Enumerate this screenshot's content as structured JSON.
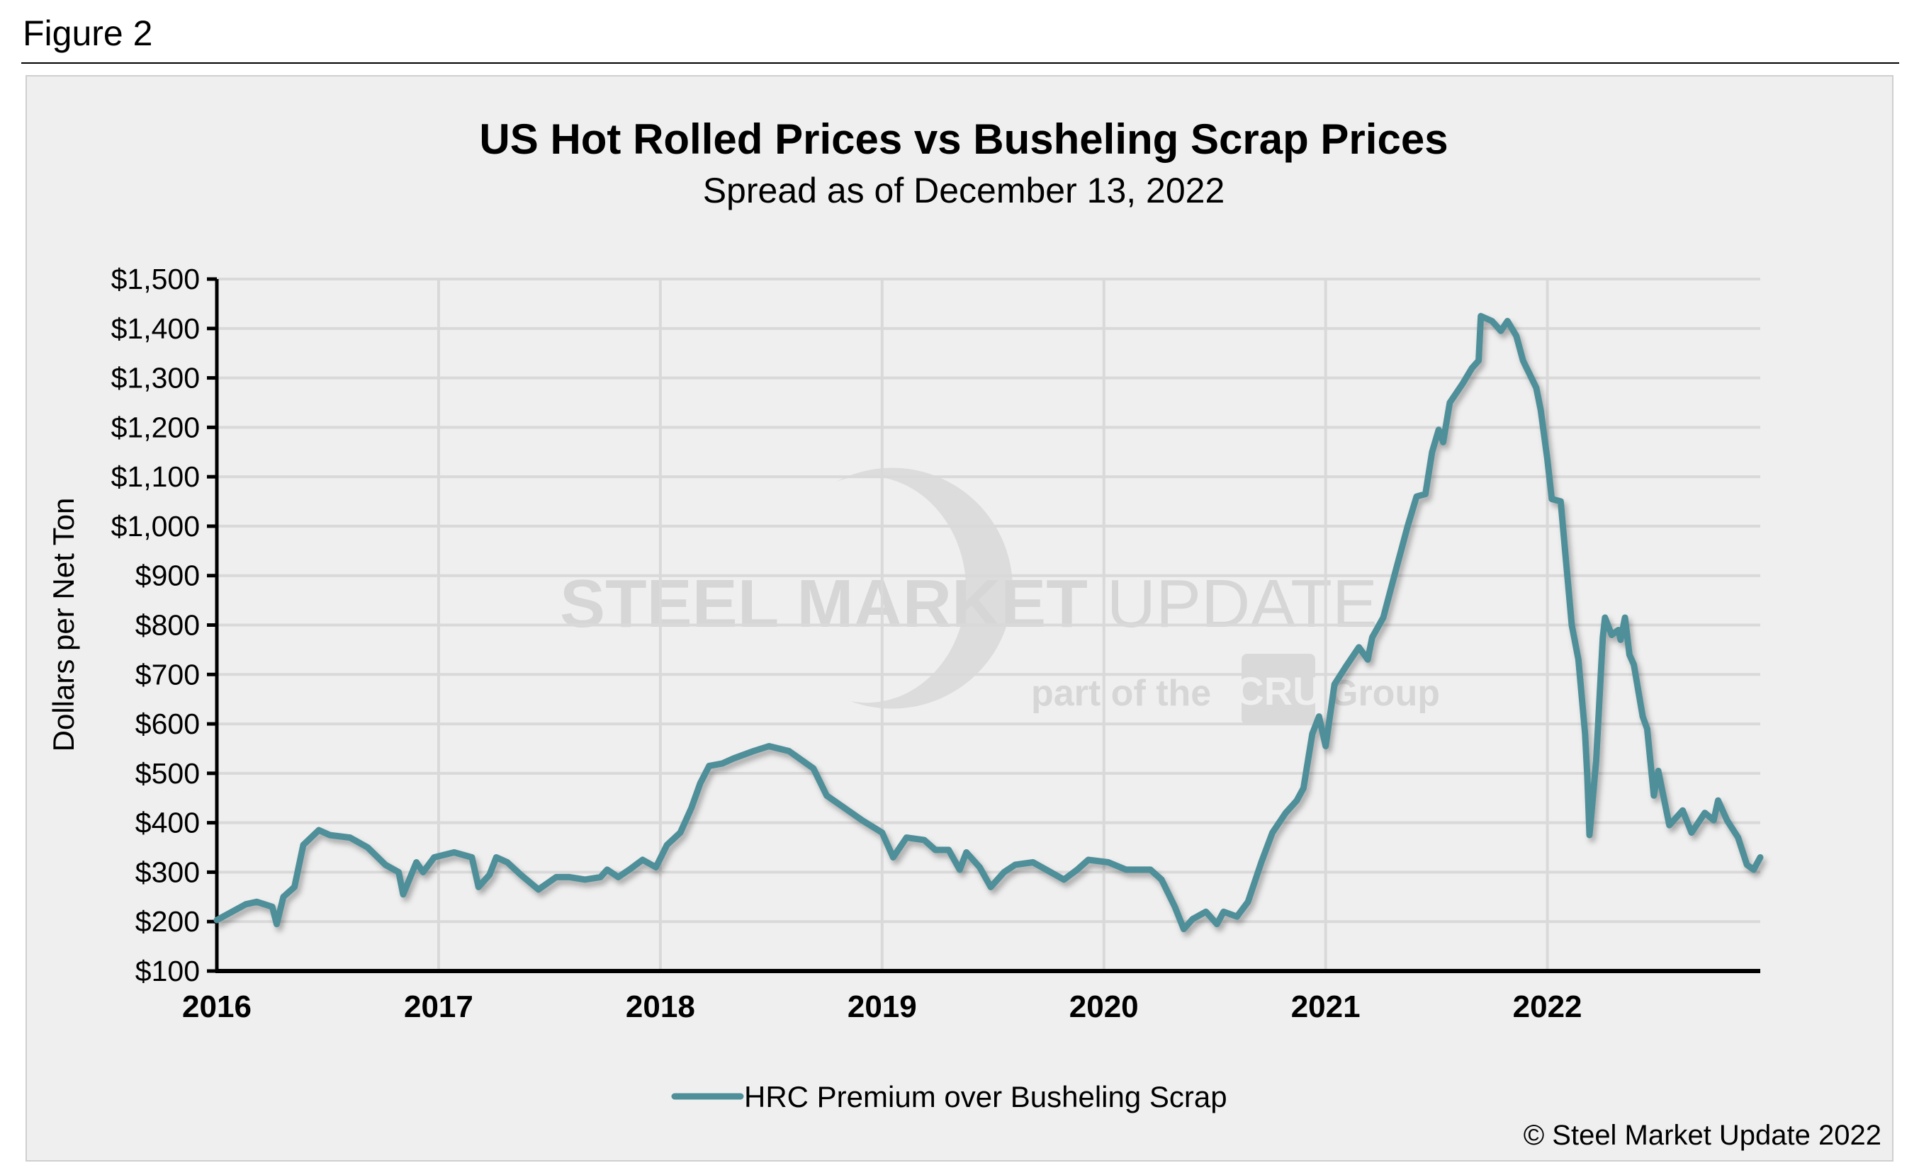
{
  "figure_label": "Figure 2",
  "watermark": {
    "line1_bold": "STEEL MARKET",
    "line1_light": "UPDATE",
    "line2_a": "part of the",
    "line2_logo": "CRU",
    "line2_b": "Group"
  },
  "copyright": "© Steel Market Update 2022",
  "colors": {
    "series": "#4f8f99",
    "grid": "#d9d9d9",
    "background": "#efefef"
  },
  "chart_data": {
    "type": "line",
    "title": "US Hot Rolled Prices vs Busheling Scrap Prices",
    "subtitle": "Spread as of December 13, 2022",
    "ylabel": "Dollars per Net Ton",
    "xlabel": "",
    "xlim": [
      2016,
      2022.96
    ],
    "ylim": [
      100,
      1500
    ],
    "yticks": [
      100,
      200,
      300,
      400,
      500,
      600,
      700,
      800,
      900,
      1000,
      1100,
      1200,
      1300,
      1400,
      1500
    ],
    "ytick_labels": [
      "$100",
      "$200",
      "$300",
      "$400",
      "$500",
      "$600",
      "$700",
      "$800",
      "$900",
      "$1,000",
      "$1,100",
      "$1,200",
      "$1,300",
      "$1,400",
      "$1,500"
    ],
    "xticks": [
      2016,
      2017,
      2018,
      2019,
      2020,
      2021,
      2022
    ],
    "xtick_labels": [
      "2016",
      "2017",
      "2018",
      "2019",
      "2020",
      "2021",
      "2022"
    ],
    "grid": true,
    "legend_position": "bottom",
    "series": [
      {
        "name": "HRC Premium over Busheling Scrap",
        "x": [
          2016.0,
          2016.13,
          2016.18,
          2016.25,
          2016.27,
          2016.3,
          2016.35,
          2016.39,
          2016.46,
          2016.51,
          2016.6,
          2016.68,
          2016.76,
          2016.82,
          2016.84,
          2016.9,
          2016.93,
          2016.98,
          2017.07,
          2017.15,
          2017.18,
          2017.23,
          2017.26,
          2017.31,
          2017.37,
          2017.45,
          2017.53,
          2017.59,
          2017.66,
          2017.73,
          2017.76,
          2017.81,
          2017.86,
          2017.92,
          2017.98,
          2018.03,
          2018.09,
          2018.14,
          2018.18,
          2018.22,
          2018.28,
          2018.33,
          2018.42,
          2018.49,
          2018.58,
          2018.69,
          2018.75,
          2018.83,
          2018.91,
          2019.0,
          2019.05,
          2019.11,
          2019.19,
          2019.24,
          2019.3,
          2019.35,
          2019.38,
          2019.44,
          2019.49,
          2019.55,
          2019.6,
          2019.68,
          2019.74,
          2019.82,
          2019.88,
          2019.93,
          2020.02,
          2020.1,
          2020.21,
          2020.26,
          2020.32,
          2020.36,
          2020.4,
          2020.46,
          2020.51,
          2020.54,
          2020.6,
          2020.65,
          2020.71,
          2020.76,
          2020.82,
          2020.87,
          2020.9,
          2020.94,
          2020.97,
          2021.0,
          2021.04,
          2021.09,
          2021.15,
          2021.19,
          2021.21,
          2021.26,
          2021.31,
          2021.37,
          2021.41,
          2021.45,
          2021.48,
          2021.51,
          2021.53,
          2021.56,
          2021.62,
          2021.66,
          2021.69,
          2021.7,
          2021.75,
          2021.79,
          2021.82,
          2021.86,
          2021.89,
          2021.95,
          2021.97,
          2022.0,
          2022.02,
          2022.06,
          2022.08,
          2022.11,
          2022.14,
          2022.17,
          2022.18,
          2022.19,
          2022.22,
          2022.25,
          2022.26,
          2022.29,
          2022.32,
          2022.33,
          2022.35,
          2022.37,
          2022.39,
          2022.43,
          2022.45,
          2022.48,
          2022.5,
          2022.55,
          2022.61,
          2022.65,
          2022.71,
          2022.75,
          2022.77,
          2022.81,
          2022.86,
          2022.9,
          2022.93,
          2022.96
        ],
        "y": [
          203,
          235,
          240,
          230,
          195,
          250,
          270,
          355,
          385,
          375,
          370,
          350,
          315,
          300,
          255,
          320,
          300,
          330,
          340,
          330,
          270,
          295,
          330,
          320,
          295,
          265,
          290,
          290,
          285,
          290,
          305,
          290,
          305,
          325,
          310,
          355,
          380,
          430,
          480,
          515,
          520,
          530,
          545,
          555,
          545,
          510,
          455,
          430,
          405,
          380,
          330,
          370,
          365,
          345,
          345,
          305,
          340,
          310,
          270,
          300,
          315,
          320,
          305,
          285,
          305,
          325,
          320,
          305,
          305,
          285,
          230,
          185,
          205,
          220,
          195,
          220,
          210,
          240,
          320,
          380,
          420,
          445,
          470,
          580,
          615,
          555,
          680,
          715,
          755,
          730,
          775,
          815,
          900,
          1000,
          1060,
          1065,
          1150,
          1195,
          1170,
          1250,
          1290,
          1320,
          1335,
          1425,
          1415,
          1395,
          1415,
          1385,
          1335,
          1280,
          1235,
          1135,
          1055,
          1050,
          950,
          800,
          730,
          580,
          495,
          375,
          525,
          775,
          815,
          780,
          790,
          770,
          815,
          740,
          720,
          615,
          590,
          455,
          505,
          395,
          425,
          380,
          420,
          405,
          445,
          405,
          370,
          315,
          305,
          330
        ]
      }
    ]
  }
}
